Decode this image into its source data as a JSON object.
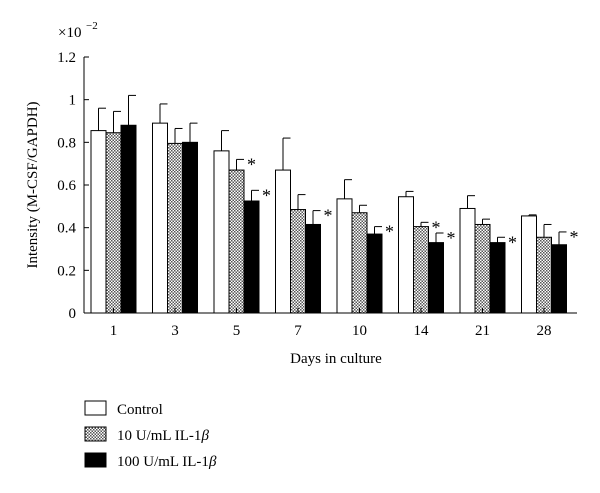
{
  "chart_data": {
    "type": "bar",
    "xlabel": "Days in culture",
    "ylabel": "Intensity (M-CSF/GAPDH)",
    "scale_label": "×10",
    "scale_exp": "−2",
    "ylim": [
      0,
      1.2
    ],
    "yticks": [
      "0",
      "0.2",
      "0.4",
      "0.6",
      "0.8",
      "1",
      "1.2"
    ],
    "categories": [
      "1",
      "3",
      "5",
      "7",
      "10",
      "14",
      "21",
      "28"
    ],
    "grid": false,
    "legend_position": "bottom-left",
    "significance_marker": "*",
    "series": [
      {
        "name": "Control",
        "fill": "white",
        "values": [
          0.855,
          0.89,
          0.76,
          0.67,
          0.535,
          0.545,
          0.49,
          0.455
        ],
        "errors": [
          0.105,
          0.09,
          0.095,
          0.15,
          0.09,
          0.025,
          0.06,
          0.005
        ],
        "significant": [
          false,
          false,
          false,
          false,
          false,
          false,
          false,
          false
        ]
      },
      {
        "name": "10 U/mL IL-1",
        "name_beta": "β",
        "fill": "hatch",
        "values": [
          0.845,
          0.795,
          0.67,
          0.485,
          0.47,
          0.405,
          0.415,
          0.355
        ],
        "errors": [
          0.1,
          0.07,
          0.05,
          0.07,
          0.035,
          0.02,
          0.025,
          0.06
        ],
        "significant": [
          false,
          false,
          true,
          false,
          false,
          true,
          false,
          false
        ]
      },
      {
        "name": "100 U/mL IL-1",
        "name_beta": "β",
        "fill": "black",
        "values": [
          0.88,
          0.8,
          0.525,
          0.415,
          0.37,
          0.33,
          0.33,
          0.32
        ],
        "errors": [
          0.14,
          0.09,
          0.05,
          0.065,
          0.035,
          0.045,
          0.025,
          0.06
        ],
        "significant": [
          false,
          false,
          true,
          true,
          true,
          true,
          true,
          true
        ]
      }
    ]
  }
}
